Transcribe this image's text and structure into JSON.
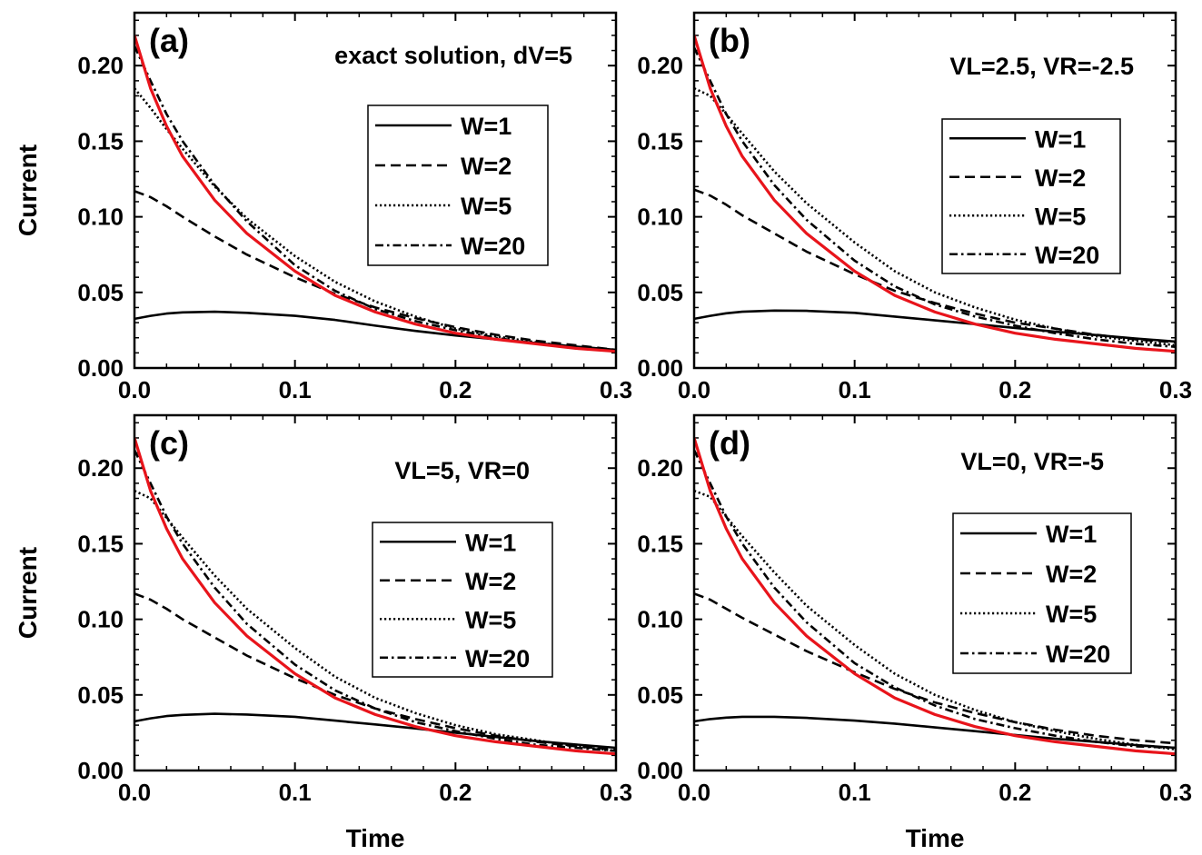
{
  "chart_data": [
    {
      "panel_label": "(a)",
      "annotation": "exact solution, dV=5",
      "type": "line",
      "xlabel": "",
      "ylabel": "Current",
      "xlim": [
        0,
        0.3
      ],
      "ylim": [
        0,
        0.235
      ],
      "xticks": [
        "0.0",
        "0.1",
        "0.2",
        "0.3"
      ],
      "yticks": [
        "0.00",
        "0.05",
        "0.10",
        "0.15",
        "0.20"
      ],
      "legend_position": "center-right",
      "x": [
        0,
        0.01,
        0.02,
        0.03,
        0.05,
        0.07,
        0.1,
        0.125,
        0.15,
        0.175,
        0.2,
        0.225,
        0.25,
        0.275,
        0.3
      ],
      "series": [
        {
          "name": "W=1",
          "style": "solid",
          "color": "#000000",
          "values": [
            0.0325,
            0.0345,
            0.036,
            0.0368,
            0.0372,
            0.0365,
            0.0345,
            0.0318,
            0.028,
            0.0245,
            0.0215,
            0.019,
            0.0165,
            0.0142,
            0.012
          ]
        },
        {
          "name": "W=2",
          "style": "dashed",
          "color": "#000000",
          "values": [
            0.117,
            0.113,
            0.107,
            0.1,
            0.087,
            0.075,
            0.06,
            0.049,
            0.04,
            0.033,
            0.027,
            0.022,
            0.018,
            0.015,
            0.012
          ]
        },
        {
          "name": "W=5",
          "style": "dotted",
          "color": "#000000",
          "values": [
            0.185,
            0.172,
            0.158,
            0.145,
            0.12,
            0.099,
            0.074,
            0.057,
            0.044,
            0.034,
            0.026,
            0.021,
            0.017,
            0.014,
            0.012
          ]
        },
        {
          "name": "W=20",
          "style": "dashdot",
          "color": "#000000",
          "values": [
            0.213,
            0.19,
            0.168,
            0.15,
            0.121,
            0.097,
            0.068,
            0.051,
            0.039,
            0.031,
            0.025,
            0.02,
            0.016,
            0.0135,
            0.011
          ]
        },
        {
          "name": "",
          "style": "solid",
          "color": "#e8141b",
          "values": [
            0.22,
            0.185,
            0.16,
            0.14,
            0.111,
            0.089,
            0.064,
            0.048,
            0.037,
            0.029,
            0.023,
            0.019,
            0.016,
            0.013,
            0.011
          ]
        }
      ]
    },
    {
      "panel_label": "(b)",
      "annotation": "VL=2.5, VR=-2.5",
      "type": "line",
      "xlabel": "",
      "ylabel": "",
      "xlim": [
        0,
        0.3
      ],
      "ylim": [
        0,
        0.235
      ],
      "xticks": [
        "0.0",
        "0.1",
        "0.2",
        "0.3"
      ],
      "yticks": [
        "0.00",
        "0.05",
        "0.10",
        "0.15",
        "0.20"
      ],
      "legend_position": "center-right",
      "x": [
        0,
        0.01,
        0.02,
        0.03,
        0.05,
        0.07,
        0.1,
        0.125,
        0.15,
        0.175,
        0.2,
        0.225,
        0.25,
        0.275,
        0.3
      ],
      "series": [
        {
          "name": "W=1",
          "style": "solid",
          "color": "#000000",
          "values": [
            0.0325,
            0.0345,
            0.0362,
            0.0372,
            0.038,
            0.0378,
            0.0365,
            0.034,
            0.0315,
            0.029,
            0.0265,
            0.024,
            0.0218,
            0.0195,
            0.0175
          ]
        },
        {
          "name": "W=2",
          "style": "dashed",
          "color": "#000000",
          "values": [
            0.118,
            0.114,
            0.108,
            0.101,
            0.089,
            0.077,
            0.062,
            0.051,
            0.043,
            0.036,
            0.03,
            0.026,
            0.022,
            0.019,
            0.017
          ]
        },
        {
          "name": "W=5",
          "style": "dotted",
          "color": "#000000",
          "values": [
            0.185,
            0.18,
            0.168,
            0.155,
            0.13,
            0.109,
            0.083,
            0.064,
            0.05,
            0.04,
            0.032,
            0.026,
            0.021,
            0.018,
            0.015
          ]
        },
        {
          "name": "W=20",
          "style": "dashdot",
          "color": "#000000",
          "values": [
            0.212,
            0.19,
            0.168,
            0.15,
            0.121,
            0.098,
            0.071,
            0.054,
            0.042,
            0.034,
            0.028,
            0.023,
            0.019,
            0.016,
            0.014
          ]
        },
        {
          "name": "",
          "style": "solid",
          "color": "#e8141b",
          "values": [
            0.22,
            0.185,
            0.16,
            0.14,
            0.111,
            0.089,
            0.064,
            0.048,
            0.037,
            0.029,
            0.023,
            0.019,
            0.016,
            0.013,
            0.011
          ]
        }
      ]
    },
    {
      "panel_label": "(c)",
      "annotation": "VL=5, VR=0",
      "type": "line",
      "xlabel": "Time",
      "ylabel": "Current",
      "xlim": [
        0,
        0.3
      ],
      "ylim": [
        0,
        0.235
      ],
      "xticks": [
        "0.0",
        "0.1",
        "0.2",
        "0.3"
      ],
      "yticks": [
        "0.00",
        "0.05",
        "0.10",
        "0.15",
        "0.20"
      ],
      "legend_position": "center-right",
      "x": [
        0,
        0.01,
        0.02,
        0.03,
        0.05,
        0.07,
        0.1,
        0.125,
        0.15,
        0.175,
        0.2,
        0.225,
        0.25,
        0.275,
        0.3
      ],
      "series": [
        {
          "name": "W=1",
          "style": "solid",
          "color": "#000000",
          "values": [
            0.0325,
            0.0345,
            0.036,
            0.0368,
            0.0375,
            0.037,
            0.0355,
            0.033,
            0.0305,
            0.0278,
            0.025,
            0.0222,
            0.0195,
            0.0172,
            0.015
          ]
        },
        {
          "name": "W=2",
          "style": "dashed",
          "color": "#000000",
          "values": [
            0.117,
            0.113,
            0.107,
            0.1,
            0.088,
            0.076,
            0.061,
            0.05,
            0.041,
            0.034,
            0.028,
            0.023,
            0.019,
            0.016,
            0.014
          ]
        },
        {
          "name": "W=5",
          "style": "dotted",
          "color": "#000000",
          "values": [
            0.185,
            0.18,
            0.167,
            0.154,
            0.129,
            0.107,
            0.081,
            0.062,
            0.048,
            0.038,
            0.03,
            0.024,
            0.02,
            0.016,
            0.013
          ]
        },
        {
          "name": "W=20",
          "style": "dashdot",
          "color": "#000000",
          "values": [
            0.212,
            0.19,
            0.168,
            0.15,
            0.121,
            0.097,
            0.07,
            0.053,
            0.041,
            0.032,
            0.026,
            0.021,
            0.017,
            0.015,
            0.013
          ]
        },
        {
          "name": "",
          "style": "solid",
          "color": "#e8141b",
          "values": [
            0.22,
            0.185,
            0.16,
            0.14,
            0.111,
            0.089,
            0.064,
            0.048,
            0.037,
            0.029,
            0.023,
            0.019,
            0.016,
            0.013,
            0.011
          ]
        }
      ]
    },
    {
      "panel_label": "(d)",
      "annotation": "VL=0, VR=-5",
      "type": "line",
      "xlabel": "Time",
      "ylabel": "",
      "xlim": [
        0,
        0.3
      ],
      "ylim": [
        0,
        0.235
      ],
      "xticks": [
        "0.0",
        "0.1",
        "0.2",
        "0.3"
      ],
      "yticks": [
        "0.00",
        "0.05",
        "0.10",
        "0.15",
        "0.20"
      ],
      "legend_position": "center-right",
      "x": [
        0,
        0.01,
        0.02,
        0.03,
        0.05,
        0.07,
        0.1,
        0.125,
        0.15,
        0.175,
        0.2,
        0.225,
        0.25,
        0.275,
        0.3
      ],
      "series": [
        {
          "name": "W=1",
          "style": "solid",
          "color": "#000000",
          "values": [
            0.0325,
            0.034,
            0.035,
            0.0355,
            0.0355,
            0.0348,
            0.033,
            0.031,
            0.0285,
            0.026,
            0.0235,
            0.021,
            0.019,
            0.0168,
            0.015
          ]
        },
        {
          "name": "W=2",
          "style": "dashed",
          "color": "#000000",
          "values": [
            0.117,
            0.113,
            0.107,
            0.101,
            0.09,
            0.079,
            0.065,
            0.054,
            0.045,
            0.038,
            0.032,
            0.027,
            0.023,
            0.02,
            0.018
          ]
        },
        {
          "name": "W=5",
          "style": "dotted",
          "color": "#000000",
          "values": [
            0.185,
            0.181,
            0.168,
            0.155,
            0.131,
            0.109,
            0.083,
            0.064,
            0.05,
            0.04,
            0.032,
            0.026,
            0.021,
            0.017,
            0.014
          ]
        },
        {
          "name": "W=20",
          "style": "dashdot",
          "color": "#000000",
          "values": [
            0.212,
            0.19,
            0.168,
            0.15,
            0.121,
            0.098,
            0.071,
            0.055,
            0.043,
            0.034,
            0.028,
            0.023,
            0.019,
            0.016,
            0.015
          ]
        },
        {
          "name": "",
          "style": "solid",
          "color": "#e8141b",
          "values": [
            0.22,
            0.185,
            0.16,
            0.14,
            0.111,
            0.089,
            0.064,
            0.048,
            0.037,
            0.029,
            0.023,
            0.019,
            0.016,
            0.013,
            0.011
          ]
        }
      ]
    }
  ]
}
